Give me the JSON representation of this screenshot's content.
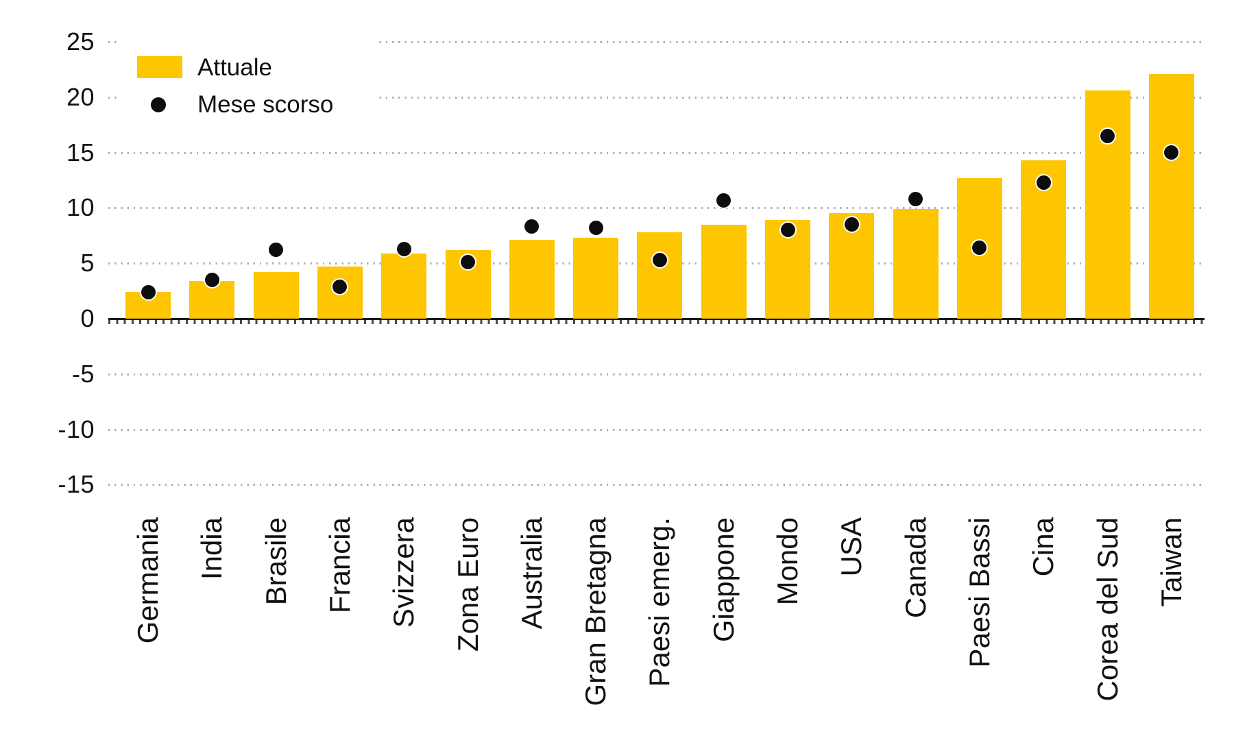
{
  "chart_data": {
    "type": "bar",
    "title": "",
    "categories": [
      "Germania",
      "India",
      "Brasile",
      "Francia",
      "Svizzera",
      "Zona Euro",
      "Australia",
      "Gran Bretagna",
      "Paesi emerg.",
      "Giappone",
      "Mondo",
      "USA",
      "Canada",
      "Paesi Bassi",
      "Cina",
      "Corea del Sud",
      "Taiwan"
    ],
    "series": [
      {
        "name": "Attuale",
        "style": "bar",
        "values": [
          2.4,
          3.4,
          4.2,
          4.7,
          5.9,
          6.2,
          7.1,
          7.3,
          7.8,
          8.5,
          8.9,
          9.5,
          9.9,
          12.7,
          14.3,
          20.6,
          22.1
        ]
      },
      {
        "name": "Mese scorso",
        "style": "scatter",
        "values": [
          2.4,
          3.5,
          6.2,
          2.9,
          6.3,
          5.1,
          8.3,
          8.2,
          5.3,
          10.7,
          8.0,
          8.5,
          10.8,
          6.4,
          12.3,
          16.5,
          15.0
        ]
      }
    ],
    "ylim": [
      -15,
      25
    ],
    "y_ticks": [
      25,
      20,
      15,
      10,
      5,
      0,
      -5,
      -10,
      -15
    ],
    "grid": "horizontal-dotted",
    "legend_position": "top-left"
  },
  "legend": {
    "attuale": "Attuale",
    "mese_scorso": "Mese scorso"
  },
  "colors": {
    "bar": "#FDC600",
    "dot": "#0D0D0D",
    "axis": "#1A1A1A",
    "grid": "#B0B0B0",
    "background": "#FFFFFF"
  }
}
